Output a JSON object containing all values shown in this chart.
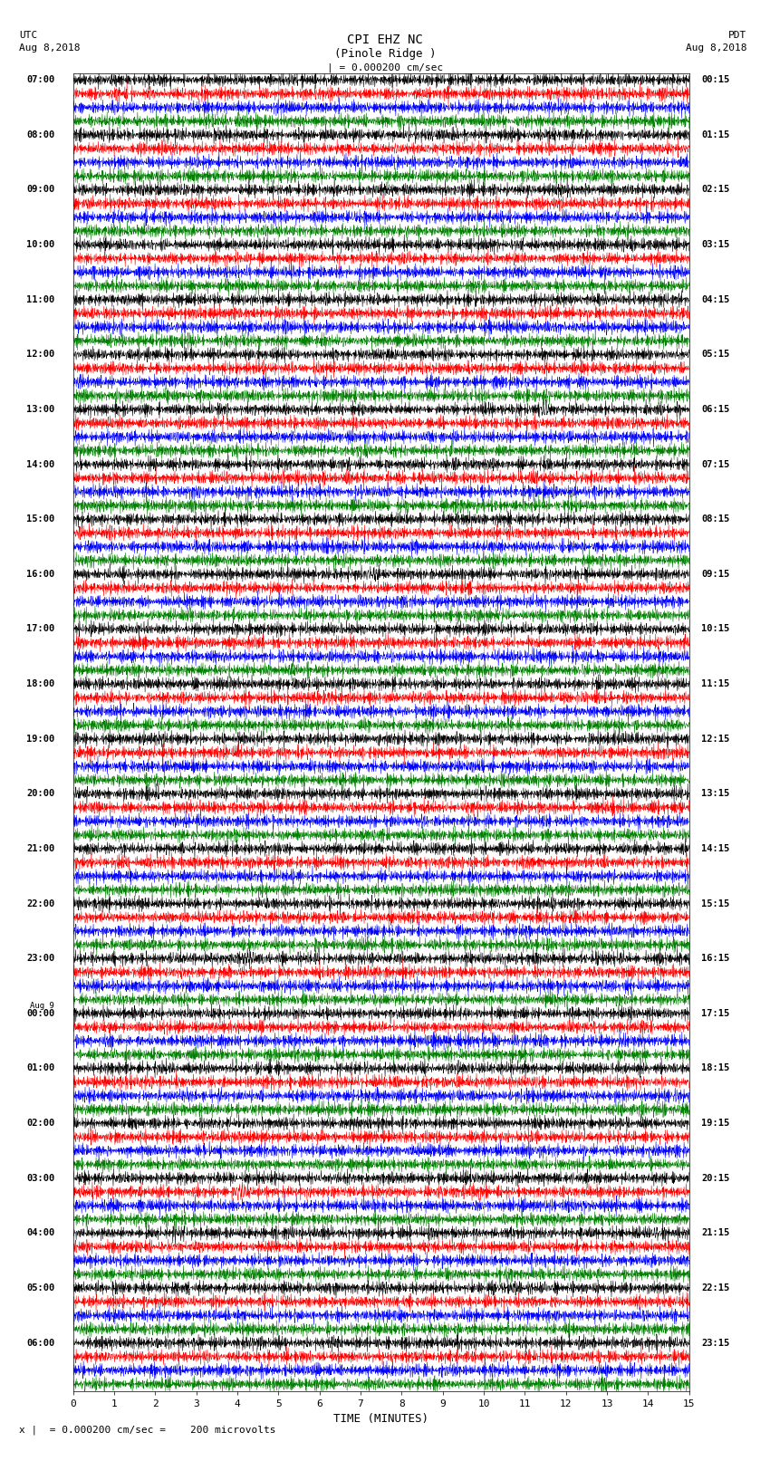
{
  "title_line1": "CPI EHZ NC",
  "title_line2": "(Pinole Ridge )",
  "scale_label": "| = 0.000200 cm/sec",
  "left_header_line1": "UTC",
  "left_header_line2": "Aug 8,2018",
  "right_header_line1": "PDT",
  "right_header_line2": "Aug 8,2018",
  "bottom_note": "x |  = 0.000200 cm/sec =    200 microvolts",
  "xlabel": "TIME (MINUTES)",
  "left_times": [
    "07:00",
    "08:00",
    "09:00",
    "10:00",
    "11:00",
    "12:00",
    "13:00",
    "14:00",
    "15:00",
    "16:00",
    "17:00",
    "18:00",
    "19:00",
    "20:00",
    "21:00",
    "22:00",
    "23:00",
    "Aug 9",
    "00:00",
    "01:00",
    "02:00",
    "03:00",
    "04:00",
    "05:00",
    "06:00"
  ],
  "left_times_is_aug9": [
    false,
    false,
    false,
    false,
    false,
    false,
    false,
    false,
    false,
    false,
    false,
    false,
    false,
    false,
    false,
    false,
    false,
    true,
    false,
    false,
    false,
    false,
    false,
    false,
    false
  ],
  "right_times": [
    "00:15",
    "01:15",
    "02:15",
    "03:15",
    "04:15",
    "05:15",
    "06:15",
    "07:15",
    "08:15",
    "09:15",
    "10:15",
    "11:15",
    "12:15",
    "13:15",
    "14:15",
    "15:15",
    "16:15",
    "17:15",
    "18:15",
    "19:15",
    "20:15",
    "21:15",
    "22:15",
    "23:15"
  ],
  "n_rows": 24,
  "n_traces_per_row": 4,
  "trace_colors": [
    "black",
    "red",
    "blue",
    "green"
  ],
  "x_ticks": [
    0,
    1,
    2,
    3,
    4,
    5,
    6,
    7,
    8,
    9,
    10,
    11,
    12,
    13,
    14,
    15
  ],
  "xmin": 0,
  "xmax": 15,
  "fig_width": 8.5,
  "fig_height": 16.13,
  "dpi": 100,
  "vline_positions": [
    5,
    10
  ],
  "vline_color": "#bbbbbb",
  "background_color": "white",
  "trace_amplitude": 0.055,
  "special_events": [
    {
      "row": 6,
      "trace": 0,
      "x": 11.5,
      "amplitude": 8.0
    },
    {
      "row": 9,
      "trace": 0,
      "x": 7.3,
      "amplitude": 6.0
    },
    {
      "row": 14,
      "trace": 0,
      "x": 2.0,
      "amplitude": 4.0
    },
    {
      "row": 16,
      "trace": 0,
      "x": 4.3,
      "amplitude": 6.0
    },
    {
      "row": 20,
      "trace": 1,
      "x": 4.1,
      "amplitude": 8.0
    },
    {
      "row": 21,
      "trace": 0,
      "x": 14.2,
      "amplitude": 4.0
    }
  ]
}
